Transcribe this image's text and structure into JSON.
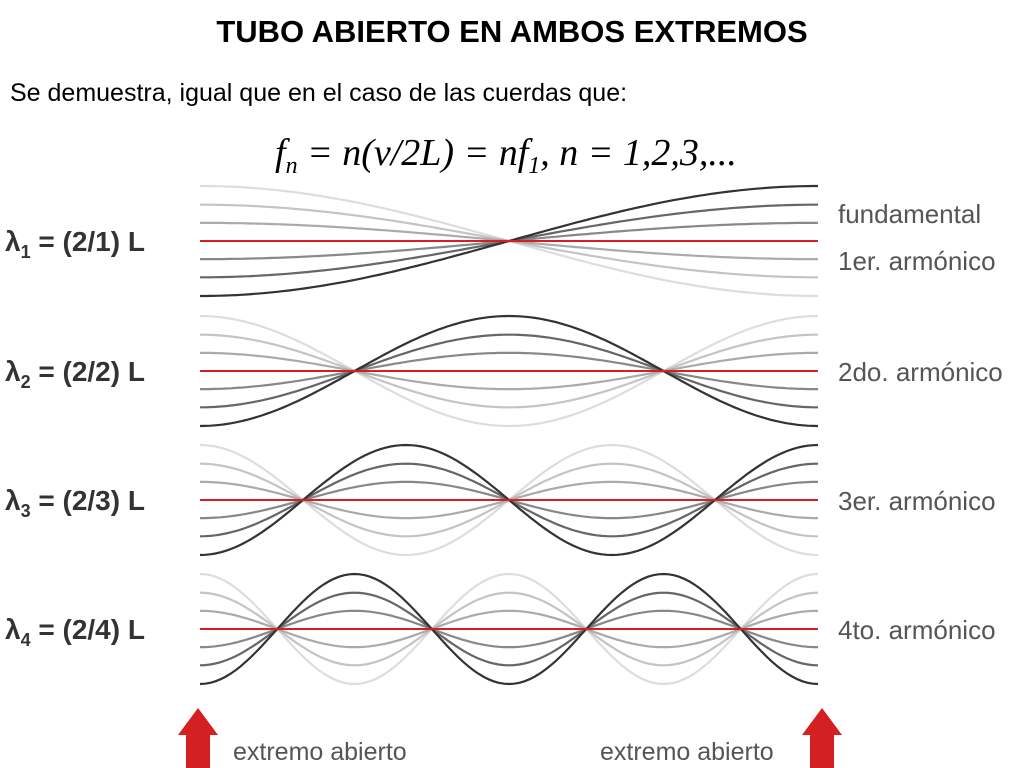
{
  "header": {
    "title": "TUBO ABIERTO EN AMBOS EXTREMOS",
    "subtitle": "Se demuestra, igual que en el caso de las cuerdas que:"
  },
  "formula": {
    "f": "f",
    "f_sub": "n",
    "middle": " = n(v/2L) = nf",
    "middle_sub": "1",
    "end": ", n = 1,2,3,..."
  },
  "rows": [
    {
      "lambda": "λ",
      "sub": "1",
      "rest": " = (2/1) L",
      "labels": [
        "fundamental",
        "1er. armónico"
      ]
    },
    {
      "lambda": "λ",
      "sub": "2",
      "rest": " = (2/2) L",
      "labels": [
        "2do. armónico"
      ]
    },
    {
      "lambda": "λ",
      "sub": "3",
      "rest": " = (2/3) L",
      "labels": [
        "3er. armónico"
      ]
    },
    {
      "lambda": "λ",
      "sub": "4",
      "rest": " = (2/4) L",
      "labels": [
        "4to. armónico"
      ]
    }
  ],
  "footer": {
    "left": "extremo abierto",
    "right": "extremo abierto"
  }
}
